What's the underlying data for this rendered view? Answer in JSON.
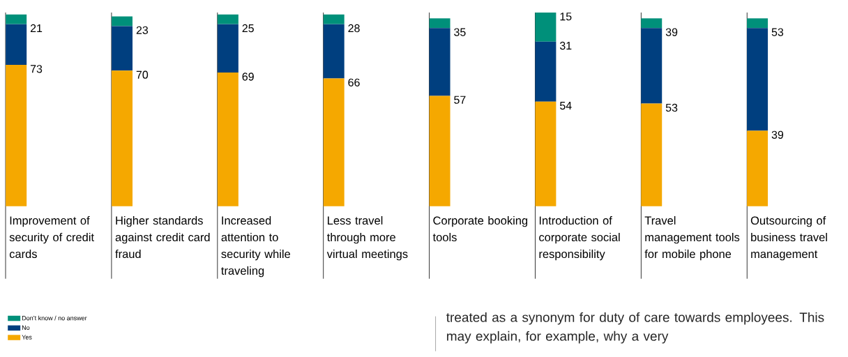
{
  "chart_data": {
    "type": "bar",
    "stacked": true,
    "legend": "bottom left",
    "categories": [
      "Improvement of security of credit cards",
      "Higher standards against credit card fraud",
      "Increased attention to security while traveling",
      "Less travel through more virtual meetings",
      "Corporate booking tools",
      "Introduction of corporate social responsibility",
      "Travel management tools for mobile phone",
      "Outsourcing of business travel management"
    ],
    "series": [
      {
        "name": "Yes",
        "color": "#f5a800",
        "values": [
          73,
          70,
          69,
          66,
          57,
          54,
          53,
          39
        ],
        "value_labels": [
          "73",
          "70",
          "69",
          "66",
          "57",
          "54",
          "53",
          "39"
        ]
      },
      {
        "name": "No",
        "color": "#003f7f",
        "values": [
          21,
          23,
          25,
          28,
          35,
          31,
          39,
          53
        ],
        "value_labels": [
          "21",
          "23",
          "25",
          "28",
          "35",
          "31",
          "39",
          "53"
        ]
      },
      {
        "name": "Don’t know / no answer",
        "color": "#00907a",
        "values": [
          5,
          5,
          5,
          5,
          5,
          15,
          5,
          5
        ],
        "value_labels": [
          null,
          null,
          null,
          null,
          null,
          "15",
          null,
          null
        ]
      }
    ],
    "annotations": [
      "treated as a synonym for duty of care towards employees. This may explain, for example, why a very"
    ]
  }
}
